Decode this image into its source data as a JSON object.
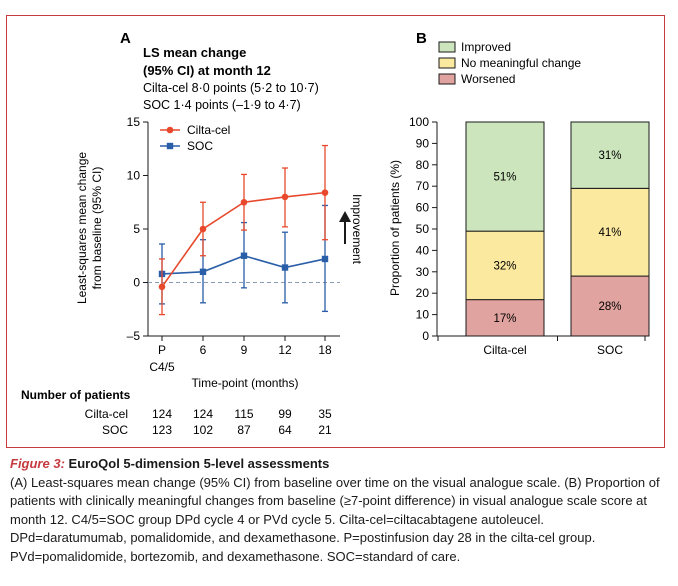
{
  "chart_data": [
    {
      "panel": "A",
      "type": "line",
      "title": "LS mean change",
      "title_line2": "(95% CI) at month 12",
      "subtitle_lines": [
        "Cilta-cel 8·0 points (5·2 to 10·7)",
        "SOC 1·4 points (–1·9 to 4·7)"
      ],
      "ylabel_lines": [
        "Least-squares mean change",
        "from baseline (95% CI)"
      ],
      "xlabel": "Time-point  (months)",
      "direction_label": "Improvement",
      "ylim": [
        -5,
        15
      ],
      "yticks": [
        -5,
        0,
        5,
        10,
        15
      ],
      "yticks_text": [
        "–5",
        "0",
        "5",
        "10",
        "15"
      ],
      "x_categories": [
        "P",
        "6",
        "9",
        "12",
        "18"
      ],
      "x_first_sublabel": "C4/5",
      "legend_placement": "top-left",
      "series": [
        {
          "name": "Cilta-cel",
          "color": "#e8492c",
          "marker": "circle",
          "values": [
            -0.4,
            5.0,
            7.5,
            8.0,
            8.4
          ],
          "ci_low": [
            -3.0,
            2.5,
            4.9,
            5.2,
            4.0
          ],
          "ci_high": [
            2.2,
            7.5,
            10.1,
            10.7,
            12.8
          ]
        },
        {
          "name": "SOC",
          "color": "#2a5ea8",
          "marker": "square",
          "values": [
            0.8,
            1.0,
            2.5,
            1.4,
            2.2
          ],
          "ci_low": [
            -2.0,
            -1.9,
            -0.5,
            -1.9,
            -2.7
          ],
          "ci_high": [
            3.6,
            4.0,
            5.6,
            4.7,
            7.2
          ]
        }
      ],
      "number_at_risk": {
        "heading": "Number of patients",
        "rows": [
          {
            "label": "Cilta-cel",
            "values": [
              "124",
              "124",
              "115",
              "99",
              "35"
            ]
          },
          {
            "label": "SOC",
            "values": [
              "123",
              "102",
              "87",
              "64",
              "21"
            ]
          }
        ]
      }
    },
    {
      "panel": "B",
      "type": "bar",
      "stacked": true,
      "categories": [
        "Cilta-cel",
        "SOC"
      ],
      "ylabel": "Proportion of patients (%)",
      "ylim": [
        0,
        100
      ],
      "yticks": [
        0,
        10,
        20,
        30,
        40,
        50,
        60,
        70,
        80,
        90,
        100
      ],
      "legend_placement": "top",
      "series": [
        {
          "name": "Worsened",
          "color": "#e0a39f",
          "values": [
            17,
            28
          ],
          "labels": [
            "17%",
            "28%"
          ]
        },
        {
          "name": "No meaningful change",
          "color": "#fbe9a0",
          "values": [
            32,
            41
          ],
          "labels": [
            "32%",
            "41%"
          ]
        },
        {
          "name": "Improved",
          "color": "#cce5bd",
          "values": [
            51,
            31
          ],
          "labels": [
            "51%",
            "31%"
          ]
        }
      ],
      "legend_order": [
        "Improved",
        "No meaningful change",
        "Worsened"
      ]
    }
  ],
  "caption": {
    "label": "Figure 3:",
    "title": "EuroQol 5-dimension 5-level assessments",
    "text": "(A) Least-squares mean change (95% CI) from baseline over time on the visual analogue scale. (B) Proportion of patients with clinically meaningful changes from baseline (≥7-point difference) in visual analogue scale score at month 12. C4/5=SOC group DPd cycle 4 or PVd cycle 5. Cilta-cel=ciltacabtagene autoleucel. DPd=daratumumab, pomalidomide, and dexamethasone. P=postinfusion day 28 in the cilta-cel group. PVd=pomalidomide, bortezomib, and dexamethasone. SOC=standard of care."
  },
  "colors": {
    "frame": "#c63b3f",
    "ref_line": "#8a9bb5",
    "axis": "#1a1a1a"
  }
}
